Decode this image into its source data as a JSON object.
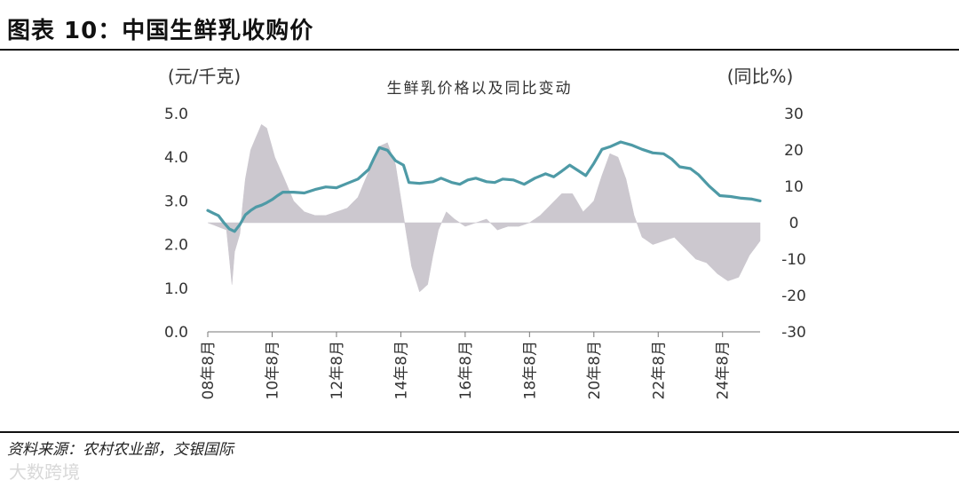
{
  "figure": {
    "title": "图表 10：中国生鲜乳收购价",
    "source": "资料来源：农村农业部，交银国际",
    "watermark": "大数跨境"
  },
  "colors": {
    "price_line": "#4e9aa6",
    "yoy_area": "#ccc8cf",
    "axis": "#777777"
  },
  "chart_data": {
    "type": "line",
    "title": "生鲜乳价格以及同比变动",
    "ylabel_left": "(元/千克)",
    "ylabel_right": "(同比%)",
    "ylim_left": [
      0,
      5
    ],
    "ylim_right": [
      -30,
      30
    ],
    "yticks_left": [
      "5.0",
      "4.0",
      "3.0",
      "2.0",
      "1.0",
      "0.0"
    ],
    "yticks_right": [
      "30",
      "20",
      "10",
      "0",
      "-10",
      "-20",
      "-30"
    ],
    "xticks": [
      "08年8月",
      "10年8月",
      "12年8月",
      "14年8月",
      "16年8月",
      "18年8月",
      "20年8月",
      "22年8月",
      "24年8月"
    ],
    "xlim": [
      "2008-08",
      "2025-10"
    ],
    "series": [
      {
        "name": "生鲜乳价格",
        "axis": "left",
        "type": "line",
        "points": [
          [
            "2008-08",
            2.78
          ],
          [
            "2008-10",
            2.72
          ],
          [
            "2008-12",
            2.66
          ],
          [
            "2009-02",
            2.5
          ],
          [
            "2009-04",
            2.36
          ],
          [
            "2009-06",
            2.3
          ],
          [
            "2009-08",
            2.46
          ],
          [
            "2009-10",
            2.68
          ],
          [
            "2009-12",
            2.78
          ],
          [
            "2010-02",
            2.86
          ],
          [
            "2010-04",
            2.9
          ],
          [
            "2010-06",
            2.96
          ],
          [
            "2010-08",
            3.03
          ],
          [
            "2010-10",
            3.12
          ],
          [
            "2010-12",
            3.2
          ],
          [
            "2011-04",
            3.2
          ],
          [
            "2011-08",
            3.18
          ],
          [
            "2011-12",
            3.26
          ],
          [
            "2012-04",
            3.32
          ],
          [
            "2012-08",
            3.3
          ],
          [
            "2012-12",
            3.4
          ],
          [
            "2013-04",
            3.5
          ],
          [
            "2013-08",
            3.72
          ],
          [
            "2013-10",
            3.98
          ],
          [
            "2013-12",
            4.22
          ],
          [
            "2014-03",
            4.16
          ],
          [
            "2014-06",
            3.92
          ],
          [
            "2014-09",
            3.82
          ],
          [
            "2014-11",
            3.42
          ],
          [
            "2015-03",
            3.4
          ],
          [
            "2015-08",
            3.44
          ],
          [
            "2015-11",
            3.52
          ],
          [
            "2016-03",
            3.42
          ],
          [
            "2016-06",
            3.38
          ],
          [
            "2016-09",
            3.48
          ],
          [
            "2016-12",
            3.52
          ],
          [
            "2017-04",
            3.44
          ],
          [
            "2017-07",
            3.42
          ],
          [
            "2017-10",
            3.5
          ],
          [
            "2018-02",
            3.48
          ],
          [
            "2018-06",
            3.38
          ],
          [
            "2018-10",
            3.52
          ],
          [
            "2019-02",
            3.62
          ],
          [
            "2019-05",
            3.55
          ],
          [
            "2019-08",
            3.68
          ],
          [
            "2019-11",
            3.82
          ],
          [
            "2020-02",
            3.7
          ],
          [
            "2020-05",
            3.58
          ],
          [
            "2020-08",
            3.86
          ],
          [
            "2020-11",
            4.18
          ],
          [
            "2021-02",
            4.24
          ],
          [
            "2021-06",
            4.35
          ],
          [
            "2021-10",
            4.28
          ],
          [
            "2022-02",
            4.18
          ],
          [
            "2022-06",
            4.1
          ],
          [
            "2022-10",
            4.08
          ],
          [
            "2023-01",
            3.96
          ],
          [
            "2023-04",
            3.78
          ],
          [
            "2023-08",
            3.74
          ],
          [
            "2023-11",
            3.6
          ],
          [
            "2024-03",
            3.34
          ],
          [
            "2024-07",
            3.12
          ],
          [
            "2024-11",
            3.1
          ],
          [
            "2025-03",
            3.06
          ],
          [
            "2025-07",
            3.04
          ],
          [
            "2025-10",
            3.0
          ]
        ]
      },
      {
        "name": "同比",
        "axis": "right",
        "type": "area",
        "points": [
          [
            "2008-08",
            0
          ],
          [
            "2009-03",
            -2
          ],
          [
            "2009-05",
            -17
          ],
          [
            "2009-06",
            -8
          ],
          [
            "2009-08",
            -3
          ],
          [
            "2009-09",
            5
          ],
          [
            "2009-10",
            12
          ],
          [
            "2009-12",
            20
          ],
          [
            "2010-04",
            27
          ],
          [
            "2010-06",
            26
          ],
          [
            "2010-09",
            18
          ],
          [
            "2010-12",
            13
          ],
          [
            "2011-04",
            6
          ],
          [
            "2011-08",
            3
          ],
          [
            "2011-12",
            2
          ],
          [
            "2012-04",
            2
          ],
          [
            "2012-08",
            3
          ],
          [
            "2012-12",
            4
          ],
          [
            "2013-04",
            7
          ],
          [
            "2013-08",
            14
          ],
          [
            "2013-12",
            21
          ],
          [
            "2014-03",
            22
          ],
          [
            "2014-06",
            16
          ],
          [
            "2014-09",
            2
          ],
          [
            "2014-12",
            -12
          ],
          [
            "2015-03",
            -19
          ],
          [
            "2015-06",
            -17
          ],
          [
            "2015-08",
            -9
          ],
          [
            "2015-10",
            -2
          ],
          [
            "2016-01",
            3
          ],
          [
            "2016-04",
            1
          ],
          [
            "2016-08",
            -1
          ],
          [
            "2016-12",
            0
          ],
          [
            "2017-04",
            1
          ],
          [
            "2017-08",
            -2
          ],
          [
            "2017-12",
            -1
          ],
          [
            "2018-04",
            -1
          ],
          [
            "2018-08",
            0
          ],
          [
            "2018-12",
            2
          ],
          [
            "2019-04",
            5
          ],
          [
            "2019-08",
            8
          ],
          [
            "2019-12",
            8
          ],
          [
            "2020-04",
            3
          ],
          [
            "2020-08",
            6
          ],
          [
            "2020-11",
            13
          ],
          [
            "2021-02",
            19
          ],
          [
            "2021-05",
            18
          ],
          [
            "2021-08",
            12
          ],
          [
            "2021-11",
            2
          ],
          [
            "2022-02",
            -4
          ],
          [
            "2022-06",
            -6
          ],
          [
            "2022-10",
            -5
          ],
          [
            "2023-02",
            -4
          ],
          [
            "2023-06",
            -7
          ],
          [
            "2023-10",
            -10
          ],
          [
            "2024-02",
            -11
          ],
          [
            "2024-06",
            -14
          ],
          [
            "2024-10",
            -16
          ],
          [
            "2025-02",
            -15
          ],
          [
            "2025-06",
            -9
          ],
          [
            "2025-10",
            -5
          ]
        ]
      }
    ]
  }
}
